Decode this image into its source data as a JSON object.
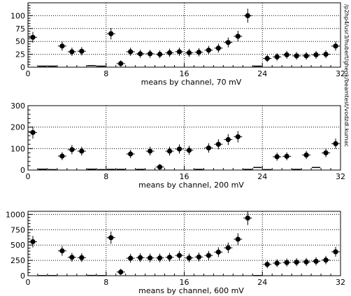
{
  "side_label": "/p2hp4/usr3/hubert/ghenk/beamtest/vodzdl.kumac",
  "chart_data": [
    {
      "type": "scatter",
      "title": "",
      "xlabel": "means by channel, 70 mV",
      "ylabel": "",
      "xlim": [
        0,
        32
      ],
      "ylim": [
        0,
        125
      ],
      "xticks": [
        0,
        8,
        16,
        24,
        32
      ],
      "yticks": [
        0,
        25,
        50,
        75,
        100
      ],
      "grid": true,
      "series": [
        {
          "name": "",
          "x": [
            0.5,
            1.5,
            2.5,
            3.5,
            4.5,
            5.5,
            6.5,
            7.5,
            8.5,
            9.5,
            10.5,
            11.5,
            12.5,
            13.5,
            14.5,
            15.5,
            16.5,
            17.5,
            18.5,
            19.5,
            20.5,
            21.5,
            22.5,
            23.5,
            24.5,
            25.5,
            26.5,
            27.5,
            28.5,
            29.5,
            30.5,
            31.5
          ],
          "y": [
            58,
            2,
            2,
            41,
            30,
            31,
            3,
            2,
            65,
            7,
            30,
            26,
            26,
            25,
            28,
            30,
            28,
            29,
            33,
            37,
            48,
            60,
            100,
            2,
            17,
            20,
            24,
            22,
            22,
            24,
            25,
            41
          ]
        }
      ]
    },
    {
      "type": "scatter",
      "title": "",
      "xlabel": "means by channel, 200 mV",
      "ylabel": "",
      "xlim": [
        0,
        32
      ],
      "ylim": [
        0,
        300
      ],
      "xticks": [
        0,
        8,
        16,
        24,
        32
      ],
      "yticks": [
        0,
        100,
        200,
        300
      ],
      "grid": true,
      "series": [
        {
          "name": "",
          "x": [
            0.5,
            1.5,
            2.5,
            3.5,
            4.5,
            5.5,
            6.5,
            7.5,
            8.5,
            9.5,
            10.5,
            11.5,
            12.5,
            13.5,
            14.5,
            15.5,
            16.5,
            17.5,
            18.5,
            19.5,
            20.5,
            21.5,
            22.5,
            23.5,
            24.5,
            25.5,
            26.5,
            27.5,
            28.5,
            29.5,
            30.5,
            31.5
          ],
          "y": [
            175,
            4,
            2,
            65,
            95,
            88,
            4,
            2,
            3,
            3,
            75,
            3,
            88,
            14,
            88,
            98,
            92,
            3,
            103,
            120,
            142,
            155,
            3,
            12,
            2,
            62,
            64,
            3,
            70,
            12,
            80,
            123
          ]
        }
      ]
    },
    {
      "type": "scatter",
      "title": "",
      "xlabel": "means by channel, 600 mV",
      "ylabel": "",
      "xlim": [
        0,
        32
      ],
      "ylim": [
        0,
        1050
      ],
      "xticks": [
        0,
        8,
        16,
        24,
        32
      ],
      "yticks": [
        0,
        250,
        500,
        750,
        1000
      ],
      "grid": true,
      "series": [
        {
          "name": "",
          "x": [
            0.5,
            1.5,
            2.5,
            3.5,
            4.5,
            5.5,
            6.5,
            7.5,
            8.5,
            9.5,
            10.5,
            11.5,
            12.5,
            13.5,
            14.5,
            15.5,
            16.5,
            17.5,
            18.5,
            19.5,
            20.5,
            21.5,
            22.5,
            23.5,
            24.5,
            25.5,
            26.5,
            27.5,
            28.5,
            29.5,
            30.5,
            31.5
          ],
          "y": [
            555,
            2,
            2,
            405,
            300,
            295,
            4,
            2,
            620,
            60,
            285,
            295,
            290,
            290,
            300,
            330,
            290,
            305,
            330,
            385,
            455,
            595,
            940,
            2,
            185,
            205,
            215,
            220,
            225,
            235,
            255,
            390
          ]
        }
      ]
    }
  ]
}
